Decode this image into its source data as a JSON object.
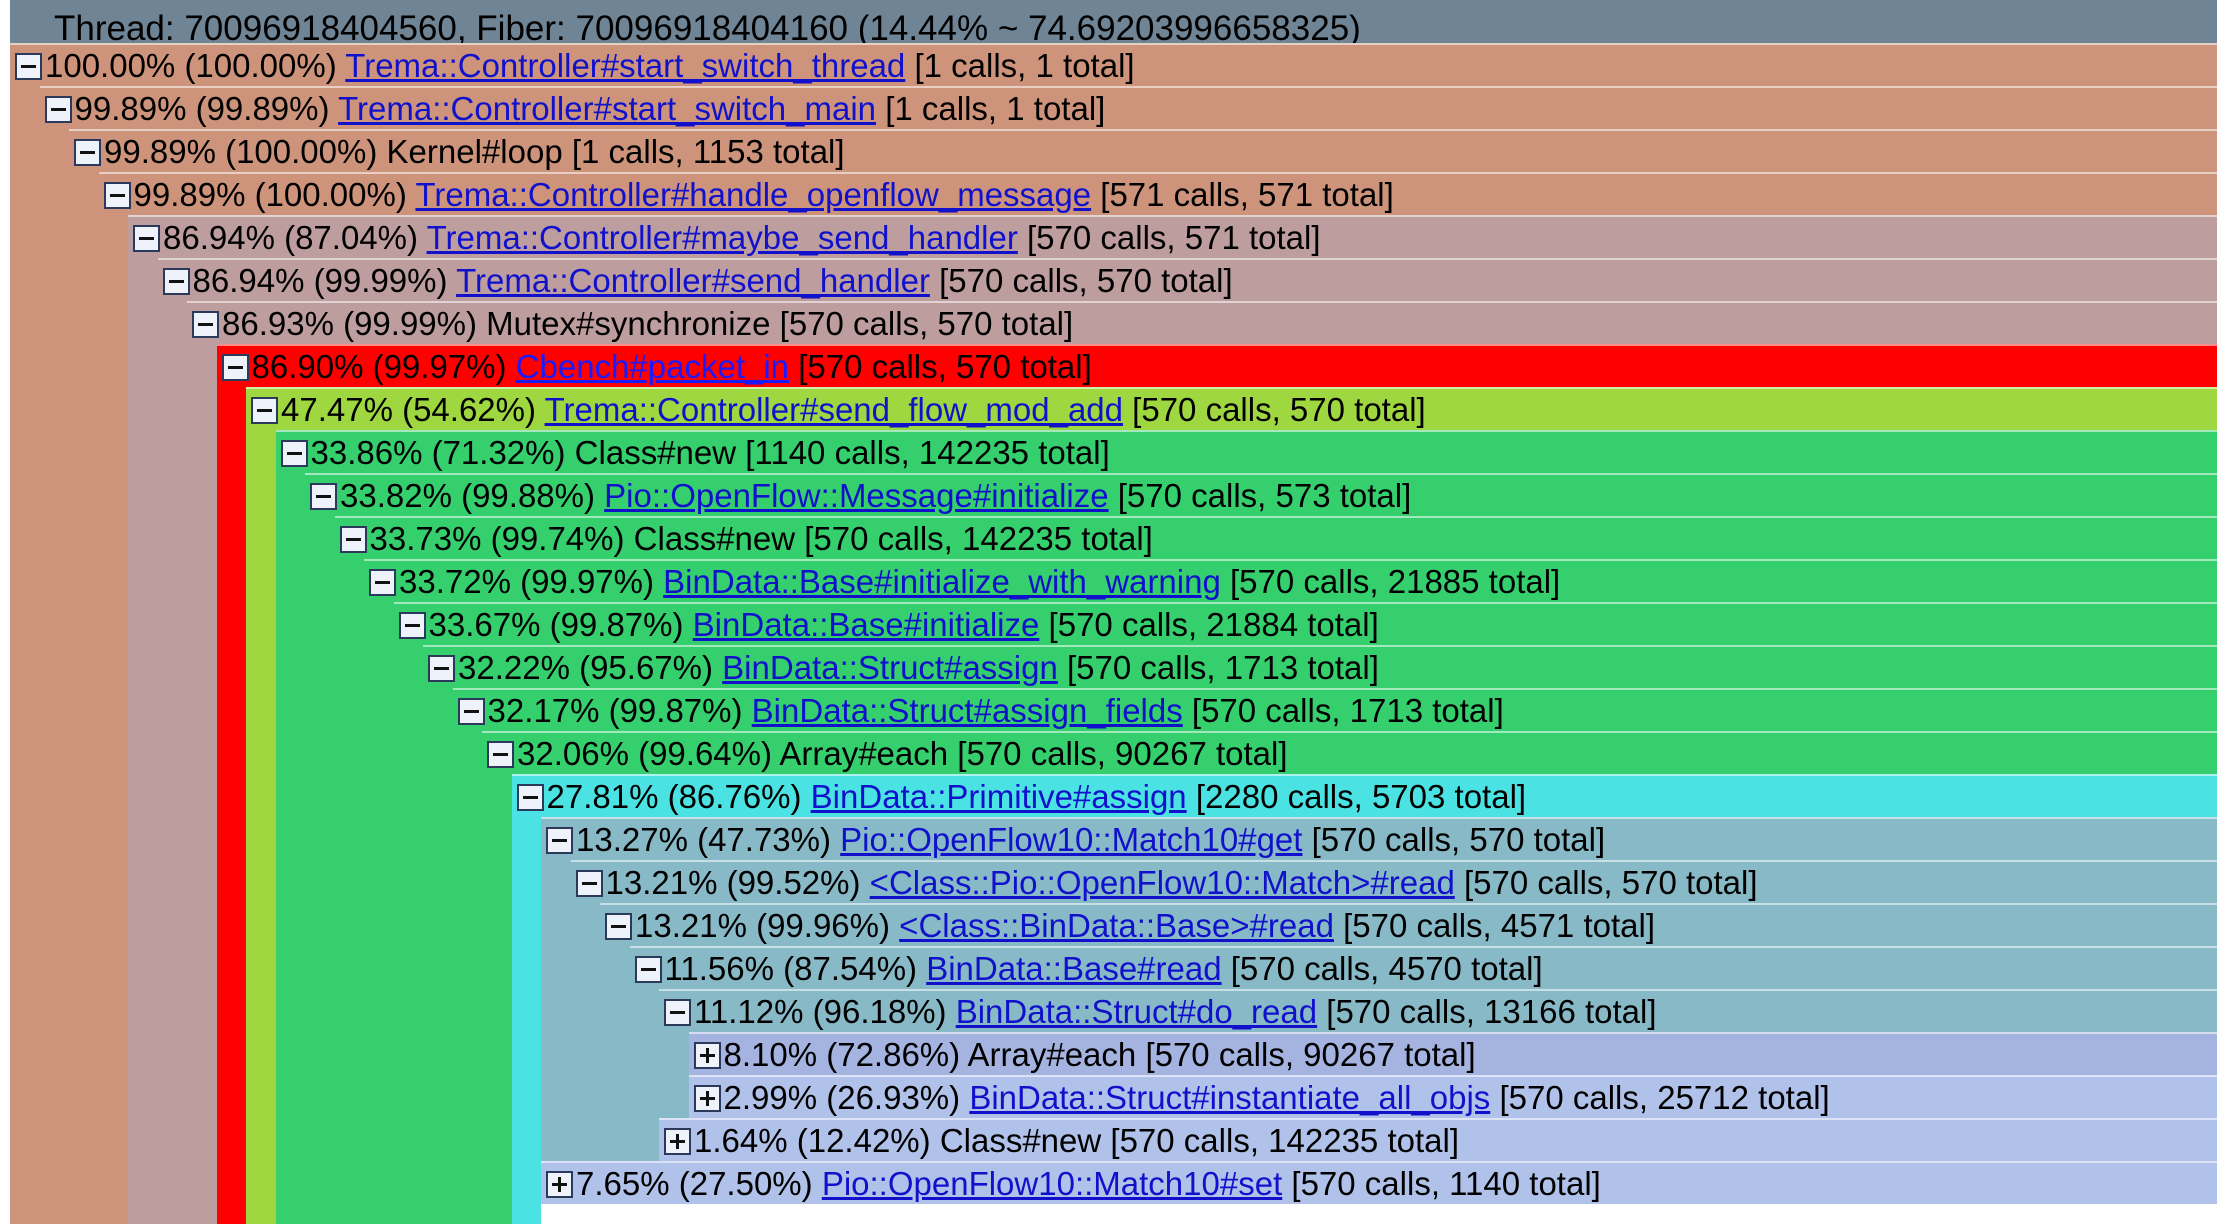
{
  "header": {
    "title": "Thread: 70096918404560, Fiber: 70096918404160 (14.44% ~ 74.69203996658325)"
  },
  "colors": {
    "header": "#6f8495",
    "tan": "#cd947b",
    "rose": "#bd9d9d",
    "red": "#ff0000",
    "yellow_green": "#9fd740",
    "green": "#36cf6e",
    "cyan": "#4be2e4",
    "teal_gray": "#87b9c7",
    "lavender": "#a4b3e0",
    "periwinkle": "#b1c2ea"
  },
  "nodes": [
    {
      "toggle": "minus",
      "pct": "100.00% (100.00%)",
      "name": "Trema::Controller#start_switch_thread",
      "link": true,
      "calls": "[1 calls, 1 total]",
      "color": "#cd947b"
    },
    {
      "toggle": "minus",
      "pct": "99.89% (99.89%)",
      "name": "Trema::Controller#start_switch_main",
      "link": true,
      "calls": "[1 calls, 1 total]",
      "color": "#cd947b"
    },
    {
      "toggle": "minus",
      "pct": "99.89% (100.00%)",
      "name": "Kernel#loop",
      "link": false,
      "calls": "[1 calls, 1153 total]",
      "color": "#cd947b"
    },
    {
      "toggle": "minus",
      "pct": "99.89% (100.00%)",
      "name": "Trema::Controller#handle_openflow_message",
      "link": true,
      "calls": "[571 calls, 571 total]",
      "color": "#cd947b"
    },
    {
      "toggle": "minus",
      "pct": "86.94% (87.04%)",
      "name": "Trema::Controller#maybe_send_handler",
      "link": true,
      "calls": "[570 calls, 571 total]",
      "color": "#bd9d9d"
    },
    {
      "toggle": "minus",
      "pct": "86.94% (99.99%)",
      "name": "Trema::Controller#send_handler",
      "link": true,
      "calls": "[570 calls, 570 total]",
      "color": "#bd9d9d"
    },
    {
      "toggle": "minus",
      "pct": "86.93% (99.99%)",
      "name": "Mutex#synchronize",
      "link": false,
      "calls": "[570 calls, 570 total]",
      "color": "#bd9d9d"
    },
    {
      "toggle": "minus",
      "pct": "86.90% (99.97%)",
      "name": "Cbench#packet_in",
      "link": true,
      "calls": "[570 calls, 570 total]",
      "color": "#ff0000"
    },
    {
      "toggle": "minus",
      "pct": "47.47% (54.62%)",
      "name": "Trema::Controller#send_flow_mod_add",
      "link": true,
      "calls": "[570 calls, 570 total]",
      "color": "#9fd740"
    },
    {
      "toggle": "minus",
      "pct": "33.86% (71.32%)",
      "name": "Class#new",
      "link": false,
      "calls": "[1140 calls, 142235 total]",
      "color": "#36cf6e"
    },
    {
      "toggle": "minus",
      "pct": "33.82% (99.88%)",
      "name": "Pio::OpenFlow::Message#initialize",
      "link": true,
      "calls": "[570 calls, 573 total]",
      "color": "#36cf6e"
    },
    {
      "toggle": "minus",
      "pct": "33.73% (99.74%)",
      "name": "Class#new",
      "link": false,
      "calls": "[570 calls, 142235 total]",
      "color": "#36cf6e"
    },
    {
      "toggle": "minus",
      "pct": "33.72% (99.97%)",
      "name": "BinData::Base#initialize_with_warning",
      "link": true,
      "calls": "[570 calls, 21885 total]",
      "color": "#36cf6e"
    },
    {
      "toggle": "minus",
      "pct": "33.67% (99.87%)",
      "name": "BinData::Base#initialize",
      "link": true,
      "calls": "[570 calls, 21884 total]",
      "color": "#36cf6e"
    },
    {
      "toggle": "minus",
      "pct": "32.22% (95.67%)",
      "name": "BinData::Struct#assign",
      "link": true,
      "calls": "[570 calls, 1713 total]",
      "color": "#36cf6e"
    },
    {
      "toggle": "minus",
      "pct": "32.17% (99.87%)",
      "name": "BinData::Struct#assign_fields",
      "link": true,
      "calls": "[570 calls, 1713 total]",
      "color": "#36cf6e"
    },
    {
      "toggle": "minus",
      "pct": "32.06% (99.64%)",
      "name": "Array#each",
      "link": false,
      "calls": "[570 calls, 90267 total]",
      "color": "#36cf6e"
    },
    {
      "toggle": "minus",
      "pct": "27.81% (86.76%)",
      "name": "BinData::Primitive#assign",
      "link": true,
      "calls": "[2280 calls, 5703 total]",
      "color": "#4be2e4"
    },
    {
      "toggle": "minus",
      "pct": "13.27% (47.73%)",
      "name": "Pio::OpenFlow10::Match10#get",
      "link": true,
      "calls": "[570 calls, 570 total]",
      "color": "#87b9c7"
    },
    {
      "toggle": "minus",
      "pct": "13.21% (99.52%)",
      "name": "<Class::Pio::OpenFlow10::Match>#read",
      "link": true,
      "calls": "[570 calls, 570 total]",
      "color": "#87b9c7"
    },
    {
      "toggle": "minus",
      "pct": "13.21% (99.96%)",
      "name": "<Class::BinData::Base>#read",
      "link": true,
      "calls": "[570 calls, 4571 total]",
      "color": "#87b9c7"
    },
    {
      "toggle": "minus",
      "pct": "11.56% (87.54%)",
      "name": "BinData::Base#read",
      "link": true,
      "calls": "[570 calls, 4570 total]",
      "color": "#87b9c7"
    },
    {
      "toggle": "minus",
      "pct": "11.12% (96.18%)",
      "name": "BinData::Struct#do_read",
      "link": true,
      "calls": "[570 calls, 13166 total]",
      "color": "#87b9c7"
    },
    {
      "toggle": "plus",
      "pct": "8.10% (72.86%)",
      "name": "Array#each",
      "link": false,
      "calls": "[570 calls, 90267 total]",
      "color": "#a4b3e0"
    },
    {
      "toggle": "plus",
      "pct": "2.99% (26.93%)",
      "name": "BinData::Struct#instantiate_all_objs",
      "link": true,
      "calls": "[570 calls, 25712 total]",
      "color": "#b1c2ea"
    },
    {
      "toggle": "plus",
      "pct": "1.64% (12.42%)",
      "name": "Class#new",
      "link": false,
      "calls": "[570 calls, 142235 total]",
      "color": "#b1c2ea"
    },
    {
      "toggle": "plus",
      "pct": "7.65% (27.50%)",
      "name": "Pio::OpenFlow10::Match10#set",
      "link": true,
      "calls": "[570 calls, 1140 total]",
      "color": "#b1c2ea"
    }
  ]
}
